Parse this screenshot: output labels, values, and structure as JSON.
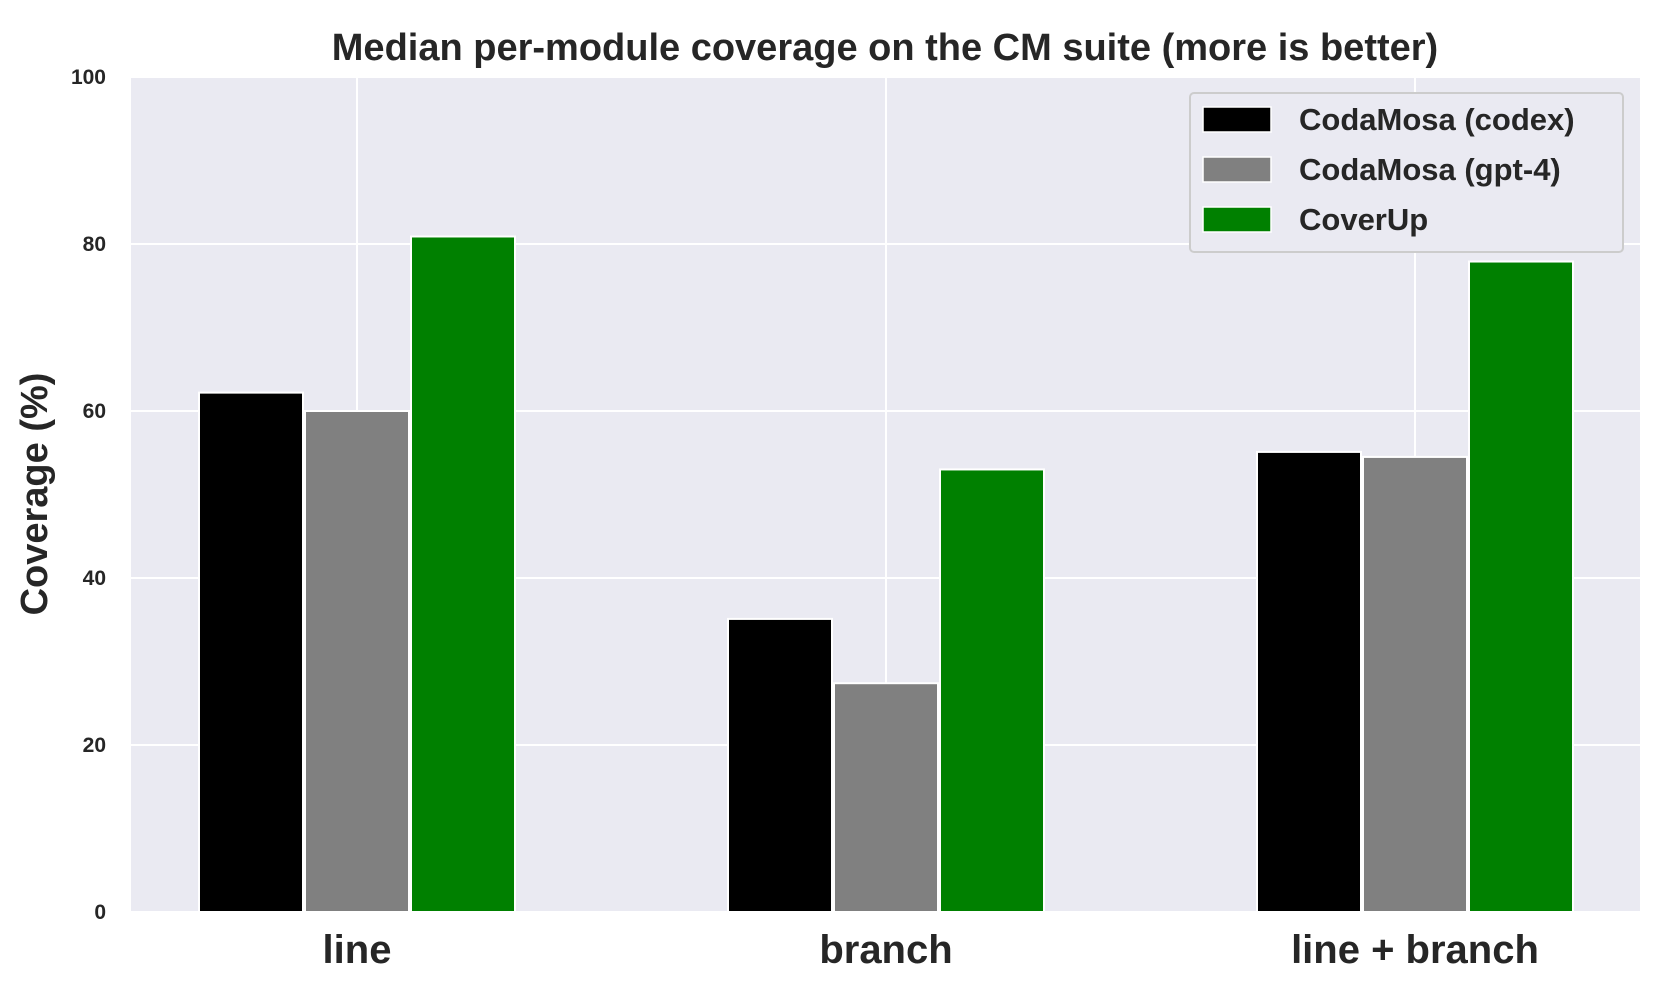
{
  "chart_data": {
    "type": "bar",
    "title": "Median per-module coverage on the CM suite (more is better)",
    "xlabel": "",
    "ylabel": "Coverage (%)",
    "ylim": [
      0,
      100
    ],
    "yticks": [
      0,
      20,
      40,
      60,
      80,
      100
    ],
    "categories": [
      "line",
      "branch",
      "line + branch"
    ],
    "series": [
      {
        "name": "CodaMosa (codex)",
        "color": "#000000",
        "values": [
          62.2,
          35.1,
          55.1
        ]
      },
      {
        "name": "CodaMosa (gpt-4)",
        "color": "#808080",
        "values": [
          60.0,
          27.4,
          54.5
        ]
      },
      {
        "name": "CoverUp",
        "color": "#008000",
        "values": [
          80.9,
          53.0,
          77.9
        ]
      }
    ],
    "grid": true,
    "legend_position": "top-right",
    "background_color": "#eaeaf2"
  }
}
